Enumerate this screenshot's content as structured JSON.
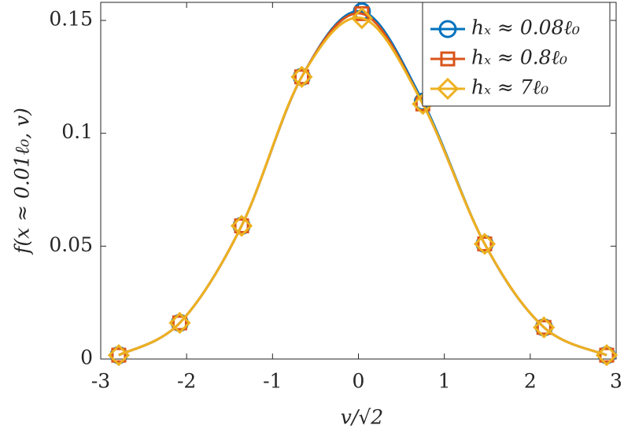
{
  "chart_data": {
    "type": "line",
    "xlabel": "v/√2",
    "ylabel": "f(x ≈ 0.01ℓ₀, v)",
    "xlim": [
      -3,
      3
    ],
    "xticks": [
      -3,
      -2,
      -1,
      0,
      1,
      2,
      3
    ],
    "ylim": [
      0,
      0.158
    ],
    "yticks": [
      0,
      0.05,
      0.1,
      0.15
    ],
    "legend": "northeast",
    "series": [
      {
        "name": "hₓ ≈ 0.08ℓ₀",
        "color": "#0072BD",
        "marker": "circle",
        "x": [
          -2.79,
          -2.08,
          -1.36,
          -0.66,
          0.04,
          0.75,
          1.47,
          2.16,
          2.89
        ],
        "values": [
          0.0017,
          0.016,
          0.059,
          0.125,
          0.154,
          0.114,
          0.051,
          0.014,
          0.0017
        ]
      },
      {
        "name": "hₓ ≈ 0.8ℓ₀",
        "color": "#D95319",
        "marker": "square",
        "x": [
          -2.79,
          -2.08,
          -1.36,
          -0.66,
          0.04,
          0.75,
          1.47,
          2.16,
          2.89
        ],
        "values": [
          0.0017,
          0.016,
          0.059,
          0.125,
          0.153,
          0.113,
          0.051,
          0.014,
          0.0017
        ]
      },
      {
        "name": "hₓ ≈ 7ℓ₀",
        "color": "#EDB120",
        "marker": "diamond",
        "x": [
          -2.79,
          -2.08,
          -1.36,
          -0.66,
          0.04,
          0.75,
          1.47,
          2.16,
          2.89
        ],
        "values": [
          0.0017,
          0.016,
          0.059,
          0.125,
          0.151,
          0.113,
          0.051,
          0.014,
          0.0017
        ]
      }
    ]
  }
}
